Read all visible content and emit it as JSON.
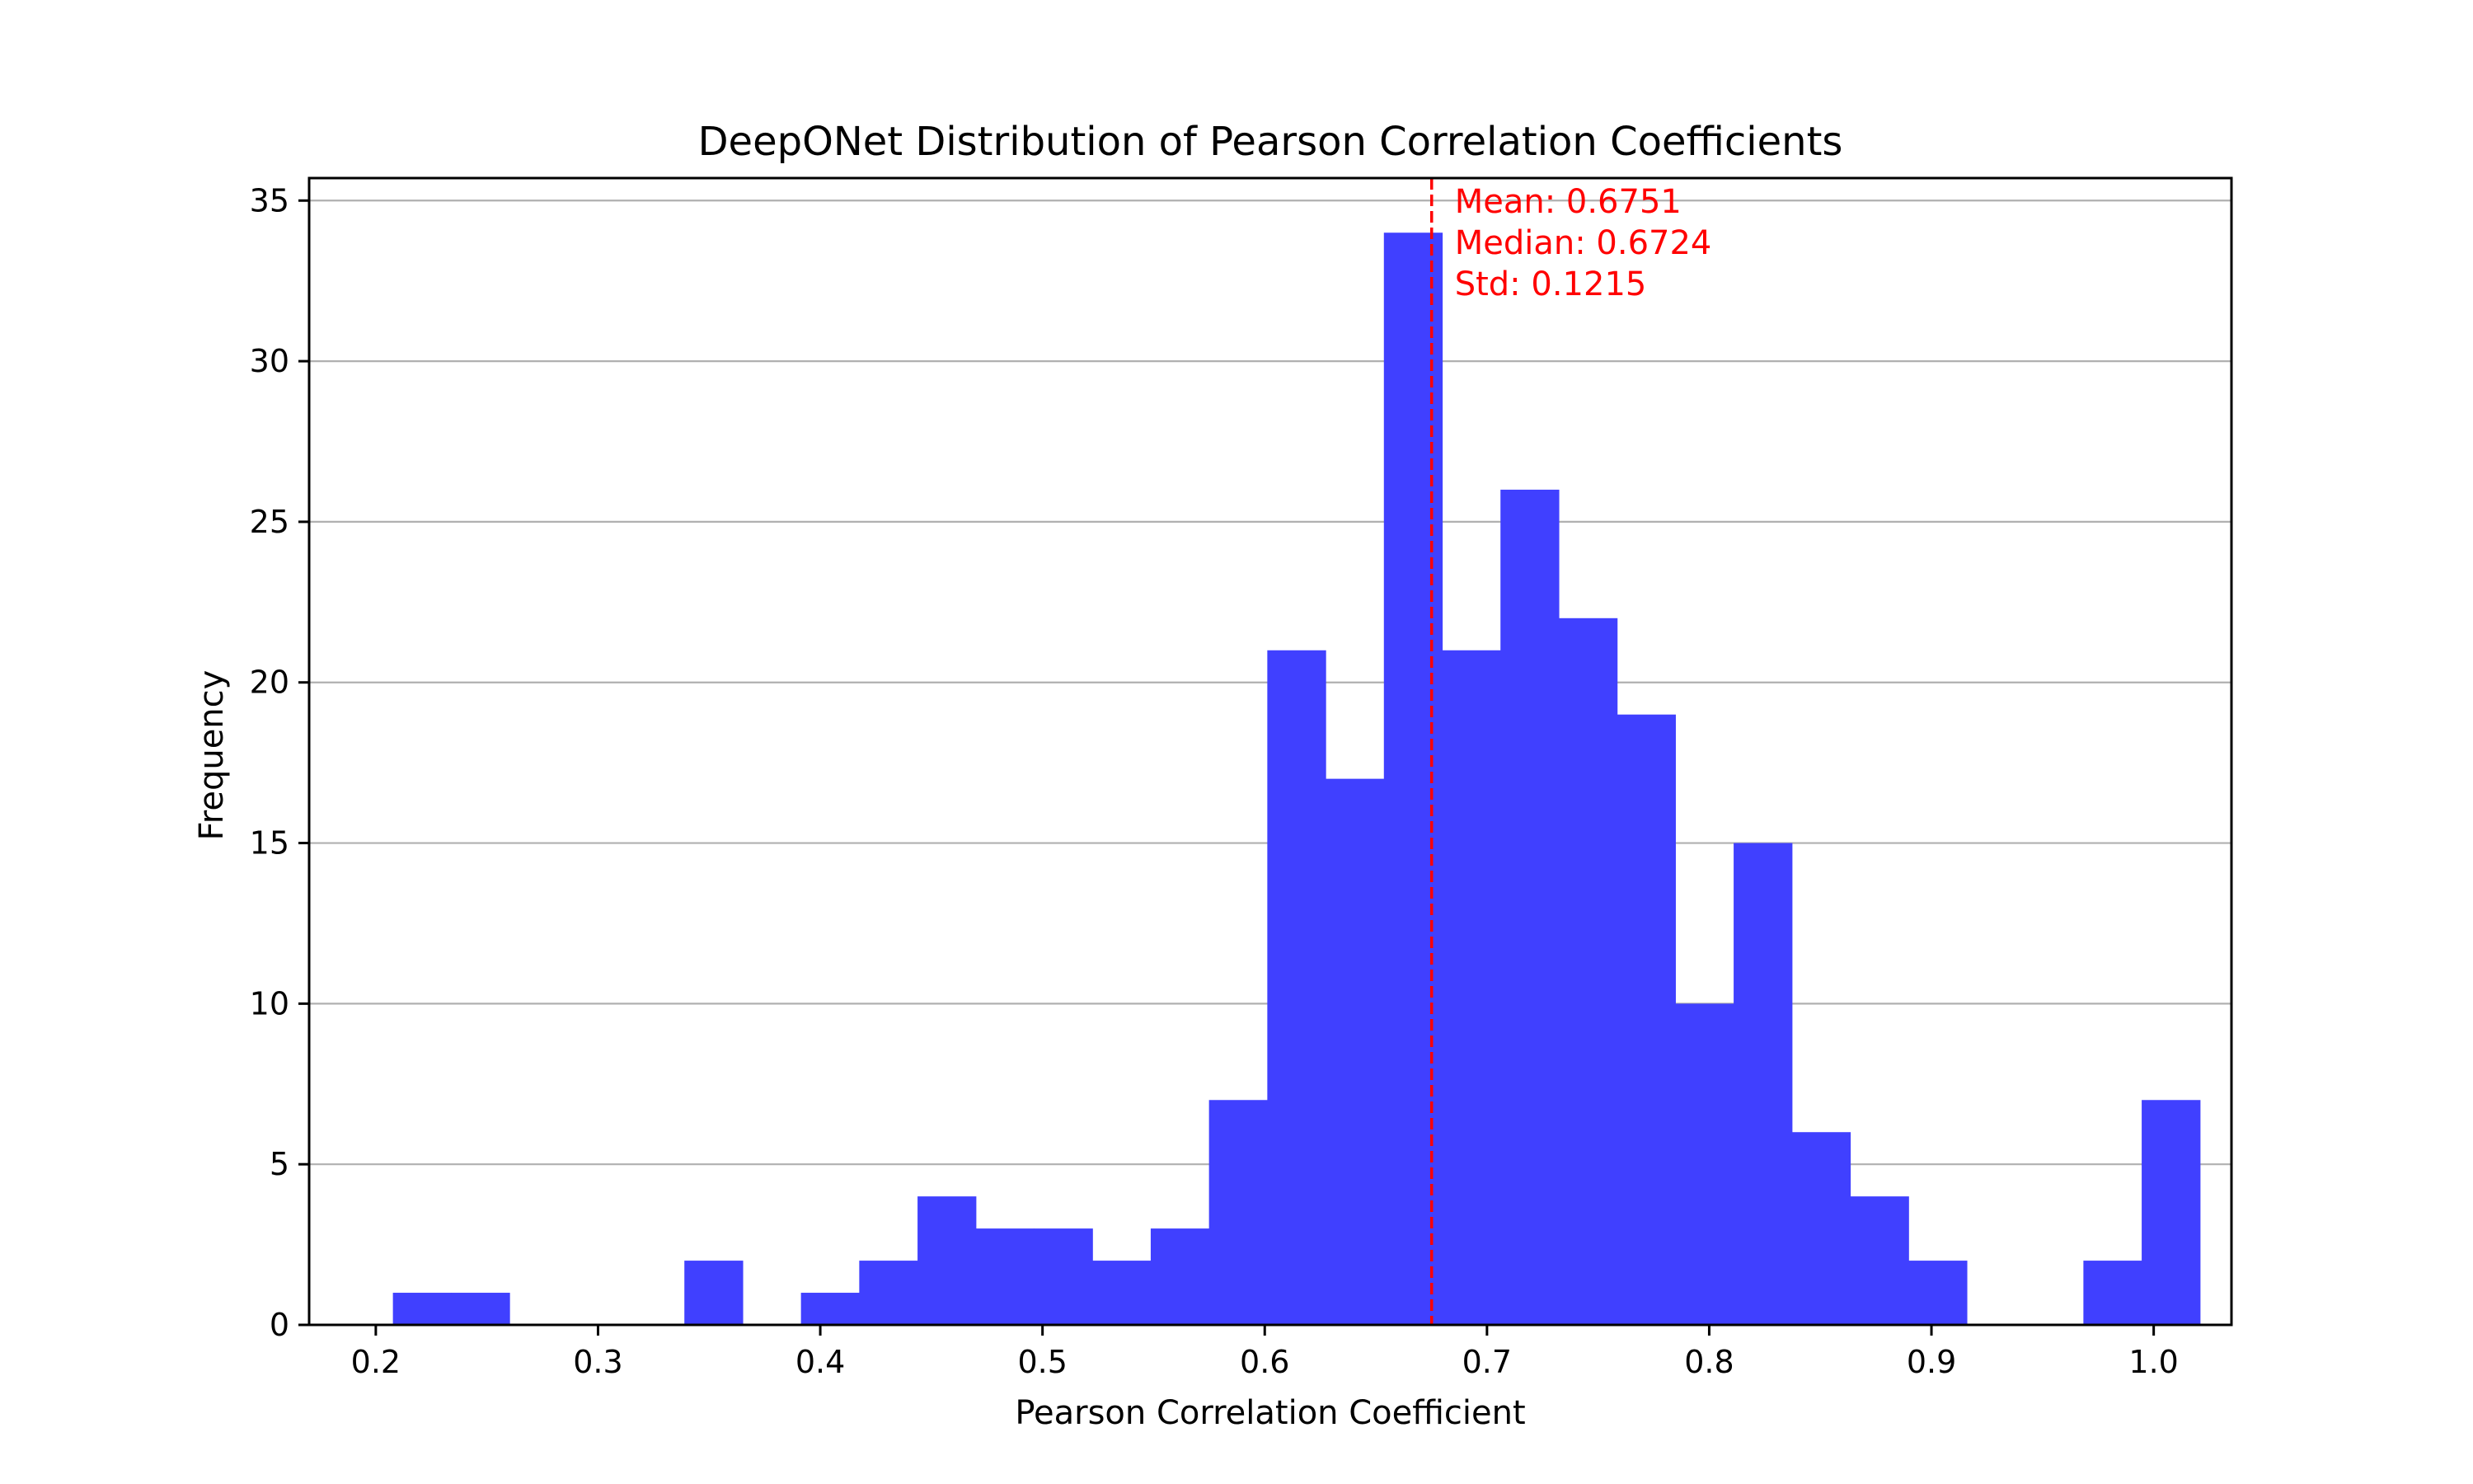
{
  "chart_data": {
    "type": "bar",
    "title": "DeepONet Distribution of Pearson Correlation Coefficients",
    "xlabel": "Pearson Correlation Coefficient",
    "ylabel": "Frequency",
    "xlim": [
      0.17,
      1.035
    ],
    "ylim": [
      0,
      35.7
    ],
    "xticks": [
      "0.2",
      "0.3",
      "0.4",
      "0.5",
      "0.6",
      "0.7",
      "0.8",
      "0.9",
      "1.0"
    ],
    "yticks": [
      "0",
      "5",
      "10",
      "15",
      "20",
      "25",
      "30",
      "35"
    ],
    "grid": "horizontal",
    "bin_start": 0.2077,
    "bin_width": 0.02623,
    "counts": [
      1,
      1,
      0,
      0,
      0,
      2,
      0,
      1,
      2,
      4,
      3,
      3,
      2,
      3,
      7,
      21,
      17,
      34,
      21,
      26,
      22,
      19,
      10,
      15,
      6,
      4,
      2,
      0,
      0,
      2,
      7
    ],
    "bar_color": "#4040ff",
    "mean_line": {
      "x": 0.6751,
      "color": "#ff0000",
      "style": "dashed"
    },
    "annotations": [
      "Mean: 0.6751",
      "Median: 0.6724",
      "Std: 0.1215"
    ],
    "annotation_color": "#ff0000"
  }
}
